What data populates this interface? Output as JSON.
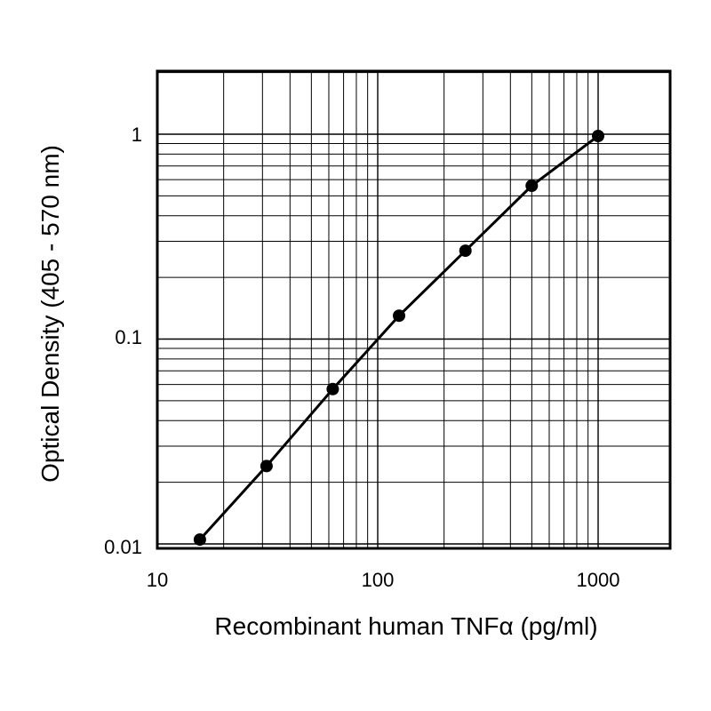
{
  "chart_data": {
    "type": "line",
    "title": "",
    "xlabel": "Recombinant human TNFα (pg/ml)",
    "ylabel": "Optical Density (405 - 570 nm)",
    "xscale": "log",
    "yscale": "log",
    "xlim": [
      10,
      2000
    ],
    "ylim": [
      0.0095,
      2
    ],
    "grid": true,
    "x_ticks": [
      "10",
      "100",
      "1000"
    ],
    "y_ticks": [
      "0.01",
      "0.1",
      "1"
    ],
    "series": [
      {
        "x": [
          15.6,
          31.3,
          62.5,
          125,
          250,
          500,
          1000
        ],
        "y": [
          0.0105,
          0.024,
          0.057,
          0.13,
          0.27,
          0.56,
          0.98
        ],
        "color": "#000000",
        "marker": "circle"
      }
    ]
  }
}
